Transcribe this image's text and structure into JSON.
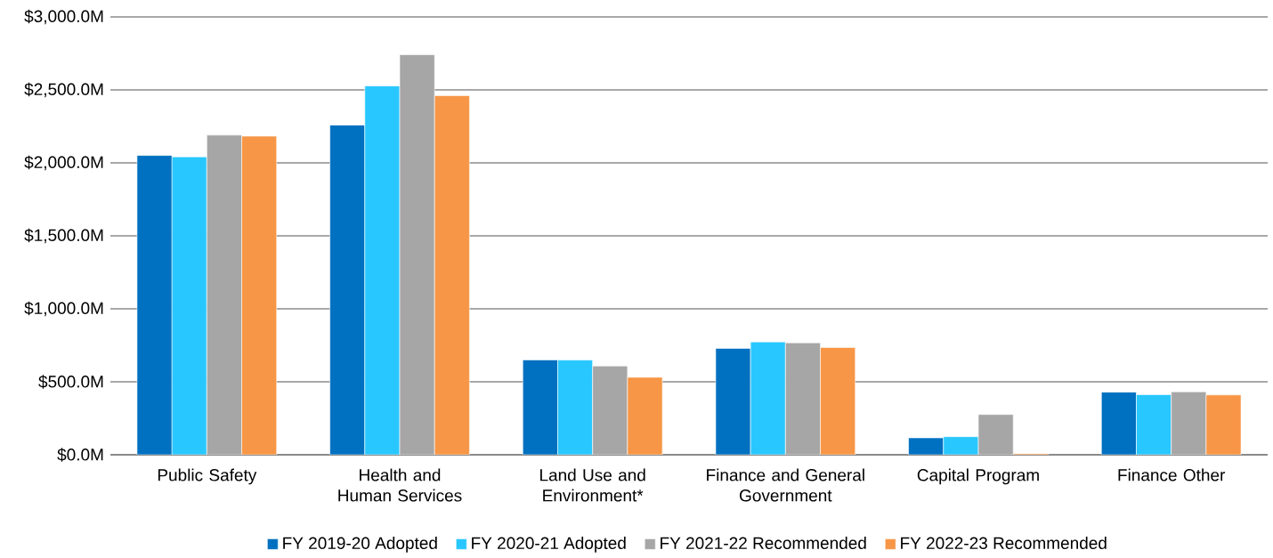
{
  "chart_data": {
    "type": "bar",
    "categories": [
      "Public Safety",
      "Health and Human Services",
      "Land Use and Environment*",
      "Finance and General Government",
      "Capital Program",
      "Finance Other"
    ],
    "series": [
      {
        "name": "FY 2019-20 Adopted",
        "color": "#0070c0",
        "values": [
          2051,
          2259,
          650,
          729,
          116,
          429
        ]
      },
      {
        "name": "FY 2020-21 Adopted",
        "color": "#29c7ff",
        "values": [
          2041,
          2527,
          649,
          773,
          124,
          412
        ]
      },
      {
        "name": "FY 2021-22 Recommended",
        "color": "#a6a6a6",
        "values": [
          2190,
          2741,
          608,
          767,
          276,
          431
        ]
      },
      {
        "name": "FY 2022-23 Recommended",
        "color": "#f79646",
        "values": [
          2183,
          2460,
          531,
          735,
          8,
          410
        ]
      }
    ],
    "ylim": [
      0,
      3000
    ],
    "yticks": [
      {
        "value": 0,
        "label": "$0.0M"
      },
      {
        "value": 500,
        "label": "$500.0M"
      },
      {
        "value": 1000,
        "label": "$1,000.0M"
      },
      {
        "value": 1500,
        "label": "$1,500.0M"
      },
      {
        "value": 2000,
        "label": "$2,000.0M"
      },
      {
        "value": 2500,
        "label": "$2,500.0M"
      },
      {
        "value": 3000,
        "label": "$3,000.0M"
      }
    ],
    "grid": "y",
    "legend": "bottom"
  }
}
